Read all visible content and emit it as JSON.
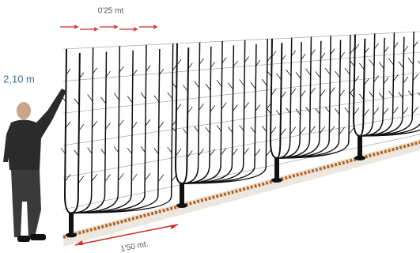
{
  "labels": {
    "spacing_top": "0'25 mt",
    "height": "2,10 m",
    "spacing_bottom": "1'50 mt."
  }
}
